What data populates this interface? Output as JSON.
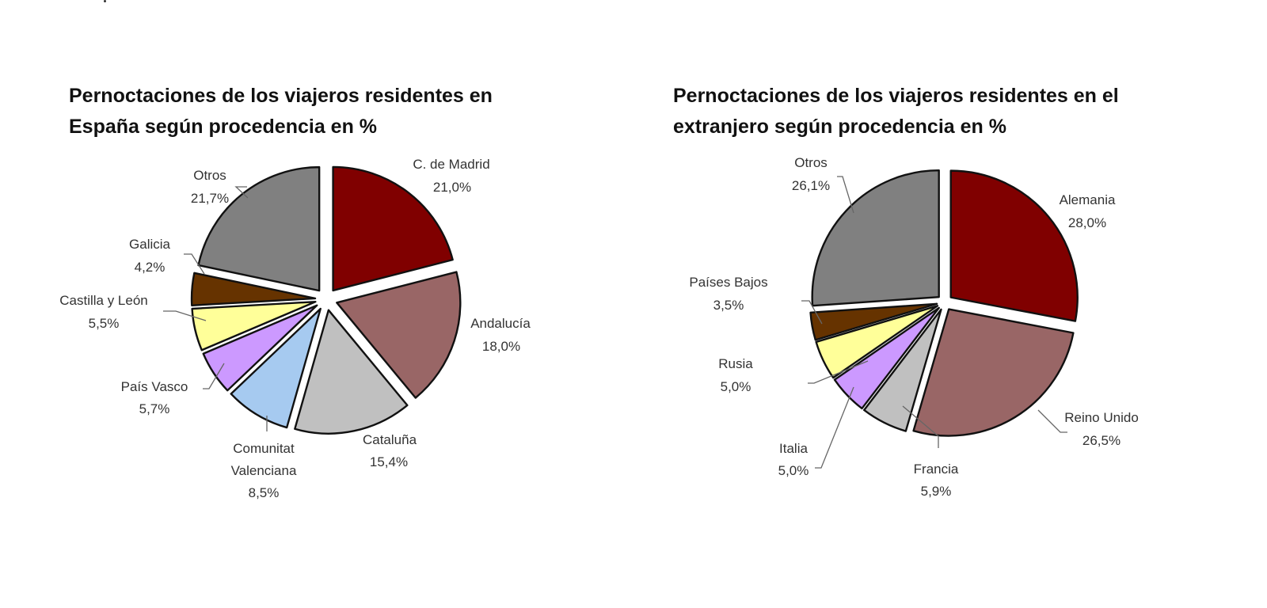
{
  "chart_data": [
    {
      "type": "pie",
      "title": "Pernoctaciones de los viajeros residentes en España según procedencia en %",
      "title_lines": [
        "Pernoctaciones de los viajeros residentes en",
        "España según procedencia en %"
      ],
      "categories": [
        "C. de Madrid",
        "Andalucía",
        "Cataluña",
        "Comunitat Valenciana",
        "País Vasco",
        "Castilla y León",
        "Galicia",
        "Otros"
      ],
      "values": [
        21.0,
        18.0,
        15.4,
        8.5,
        5.7,
        5.5,
        4.2,
        21.7
      ],
      "labels": [
        "21,0%",
        "18,0%",
        "15,4%",
        "8,5%",
        "5,7%",
        "5,5%",
        "4,2%",
        "21,7%"
      ],
      "colors": [
        "#800000",
        "#996666",
        "#c0c0c0",
        "#a6caf0",
        "#cc99ff",
        "#ffff99",
        "#663300",
        "#808080"
      ],
      "exploded": true,
      "legend": "none (data labels with leader lines)"
    },
    {
      "type": "pie",
      "title": "Pernoctaciones de los viajeros residentes en el extranjero según procedencia en %",
      "title_lines": [
        "Pernoctaciones de los viajeros residentes en el",
        "extranjero según procedencia en %"
      ],
      "categories": [
        "Alemania",
        "Reino Unido",
        "Francia",
        "Italia",
        "Rusia",
        "Países Bajos",
        "Otros"
      ],
      "values": [
        28.0,
        26.5,
        5.9,
        5.0,
        5.0,
        3.5,
        26.1
      ],
      "labels": [
        "28,0%",
        "26,5%",
        "5,9%",
        "5,0%",
        "5,0%",
        "3,5%",
        "26,1%"
      ],
      "colors": [
        "#800000",
        "#996666",
        "#c0c0c0",
        "#cc99ff",
        "#ffff99",
        "#663300",
        "#808080"
      ],
      "exploded": true,
      "legend": "none (data labels with leader lines)"
    }
  ],
  "left": {
    "title_line1": "Pernoctaciones de los viajeros residentes en",
    "title_line2": "España según procedencia en %",
    "labels": [
      {
        "name": "C. de Madrid",
        "pct": "21,0%"
      },
      {
        "name": "Andalucía",
        "pct": "18,0%"
      },
      {
        "name": "Cataluña",
        "pct": "15,4%"
      },
      {
        "name1": "Comunitat",
        "name2": "Valenciana",
        "pct": "8,5%"
      },
      {
        "name": "País Vasco",
        "pct": "5,7%"
      },
      {
        "name": "Castilla y León",
        "pct": "5,5%"
      },
      {
        "name": "Galicia",
        "pct": "4,2%"
      },
      {
        "name": "Otros",
        "pct": "21,7%"
      }
    ]
  },
  "right": {
    "title_line1": "Pernoctaciones de los viajeros residentes en el",
    "title_line2": "extranjero según procedencia en %",
    "labels": [
      {
        "name": "Alemania",
        "pct": "28,0%"
      },
      {
        "name": "Reino Unido",
        "pct": "26,5%"
      },
      {
        "name": "Francia",
        "pct": "5,9%"
      },
      {
        "name": "Italia",
        "pct": "5,0%"
      },
      {
        "name": "Rusia",
        "pct": "5,0%"
      },
      {
        "name": "Países Bajos",
        "pct": "3,5%"
      },
      {
        "name": "Otros",
        "pct": "26,1%"
      }
    ]
  }
}
